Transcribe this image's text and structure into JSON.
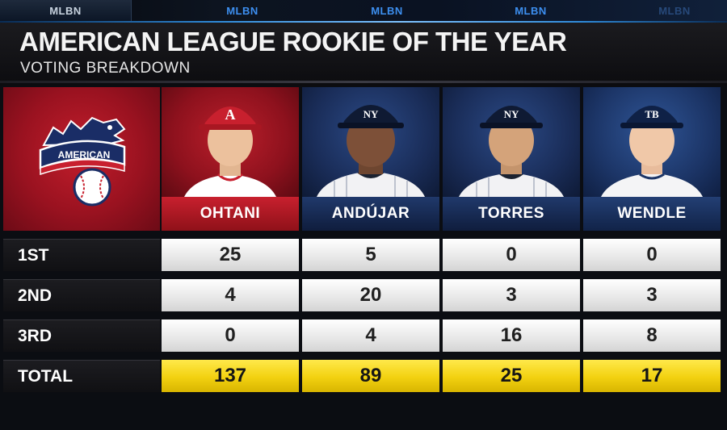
{
  "network_tabs": [
    "MLBN",
    "MLBN",
    "MLBN",
    "MLBN",
    "MLBN"
  ],
  "header": {
    "title": "AMERICAN LEAGUE ROOKIE OF THE YEAR",
    "subtitle": "VOTING BREAKDOWN"
  },
  "logo": {
    "text": "AMERICAN"
  },
  "players": [
    {
      "name": "OHTANI",
      "team": "angels",
      "cap_letter": "A"
    },
    {
      "name": "ANDÚJAR",
      "team": "yankees",
      "cap_letter": "NY"
    },
    {
      "name": "TORRES",
      "team": "yankees",
      "cap_letter": "NY"
    },
    {
      "name": "WENDLE",
      "team": "rays",
      "cap_letter": "TB"
    }
  ],
  "rows": [
    {
      "label": "1ST",
      "values": [
        "25",
        "5",
        "0",
        "0"
      ]
    },
    {
      "label": "2ND",
      "values": [
        "4",
        "20",
        "3",
        "3"
      ]
    },
    {
      "label": "3RD",
      "values": [
        "0",
        "4",
        "16",
        "8"
      ]
    },
    {
      "label": "TOTAL",
      "values": [
        "137",
        "89",
        "25",
        "17"
      ]
    }
  ],
  "colors": {
    "angels_red": "#c8202e",
    "yankees_navy": "#1a2d59",
    "rays_blue": "#1c3567",
    "total_yellow": "#f2d110",
    "network_blue": "#3d8ff0"
  }
}
